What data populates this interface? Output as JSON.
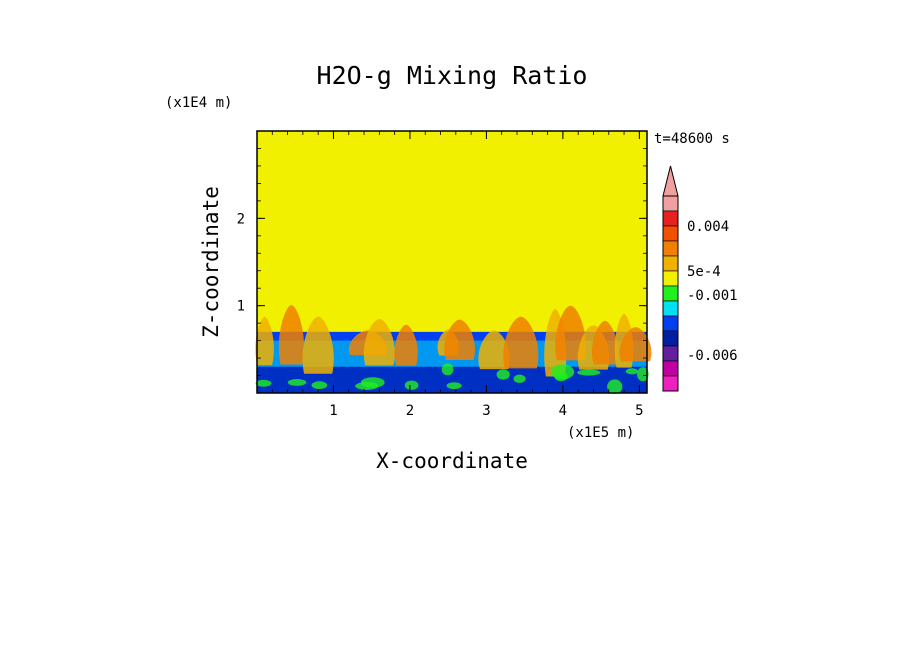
{
  "chart_data": {
    "type": "heatmap",
    "title": "H2O-g Mixing Ratio",
    "xlabel": "X-coordinate",
    "ylabel": "Z-coordinate",
    "x_unit": "(x1E5 m)",
    "y_unit": "(x1E4 m)",
    "time_label": "t=48600 s",
    "xlim": [
      0,
      5.1
    ],
    "ylim": [
      0,
      3
    ],
    "x_ticks": [
      {
        "value": 1,
        "label": "1"
      },
      {
        "value": 2,
        "label": "2"
      },
      {
        "value": 3,
        "label": "3"
      },
      {
        "value": 4,
        "label": "4"
      },
      {
        "value": 5,
        "label": "5"
      }
    ],
    "y_ticks": [
      {
        "value": 1,
        "label": "1"
      },
      {
        "value": 2,
        "label": "2"
      }
    ],
    "colorbar": {
      "levels": [
        {
          "color": "#f0a0a0"
        },
        {
          "color": "#e82020"
        },
        {
          "color": "#f05000"
        },
        {
          "color": "#f08000"
        },
        {
          "color": "#f0b000"
        },
        {
          "color": "#f0f000"
        },
        {
          "color": "#20f020"
        },
        {
          "color": "#00e0f0"
        },
        {
          "color": "#0040f0"
        },
        {
          "color": "#0020a0"
        },
        {
          "color": "#6020a0"
        },
        {
          "color": "#c000a0"
        },
        {
          "color": "#f020c0"
        }
      ],
      "labels": [
        {
          "text": "0.004",
          "level": 2
        },
        {
          "text": "5e-4",
          "level": 5
        },
        {
          "text": "-0.001",
          "level": 6.6
        },
        {
          "text": "-0.006",
          "level": 10.6
        }
      ],
      "extend": "max"
    },
    "field": {
      "background_color": "#f0f000",
      "boundary_layer_top": 0.7,
      "boundary_layer_color": "#0040f0",
      "layers": [
        {
          "color": "#00e0f0",
          "z_range": [
            0.3,
            0.6
          ]
        },
        {
          "color": "#0020a0",
          "z_range": [
            0,
            0.3
          ]
        }
      ]
    }
  }
}
